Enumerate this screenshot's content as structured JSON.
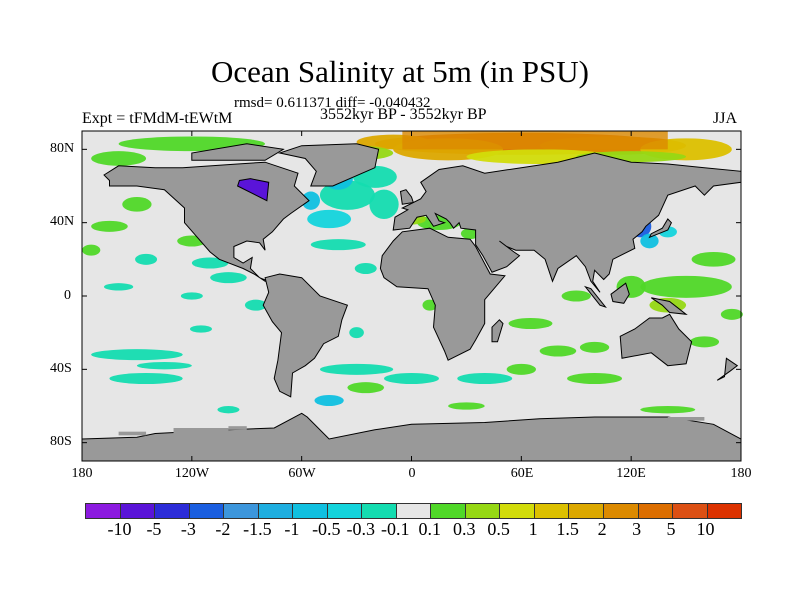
{
  "title": "Ocean Salinity at 5m (in PSU)",
  "stats": "rmsd= 0.611371 diff= -0.040432",
  "experiment": "Expt = tFMdM-tEWtM",
  "period": "3552kyr BP - 3552kyr BP",
  "season": "JJA",
  "chart_data": {
    "type": "heatmap",
    "projection": "cylindrical-equidistant",
    "lon_range": [
      -180,
      180
    ],
    "lat_range": [
      -90,
      90
    ],
    "lat_ticks": [
      {
        "value": 80,
        "label": "80N"
      },
      {
        "value": 40,
        "label": "40N"
      },
      {
        "value": 0,
        "label": "0"
      },
      {
        "value": -40,
        "label": "40S"
      },
      {
        "value": -80,
        "label": "80S"
      }
    ],
    "lon_ticks": [
      {
        "value": -180,
        "label": "180"
      },
      {
        "value": -120,
        "label": "120W"
      },
      {
        "value": -60,
        "label": "60W"
      },
      {
        "value": 0,
        "label": "0"
      },
      {
        "value": 60,
        "label": "60E"
      },
      {
        "value": 120,
        "label": "120E"
      },
      {
        "value": 180,
        "label": "180"
      }
    ],
    "land_color": "#999999",
    "colorbar": {
      "labels": [
        "-10",
        "-5",
        "-3",
        "-2",
        "-1.5",
        "-1",
        "-0.5",
        "-0.3",
        "-0.1",
        "0.1",
        "0.3",
        "0.5",
        "1",
        "1.5",
        "2",
        "3",
        "5",
        "10"
      ],
      "colors": [
        "#8c1ae0",
        "#5a14d8",
        "#2c2cd8",
        "#1a5ee0",
        "#3c96dc",
        "#1eaee0",
        "#10c0e0",
        "#14d4dc",
        "#14dcb0",
        "#e6e6e6",
        "#50d828",
        "#96d814",
        "#d2dc0a",
        "#dcc000",
        "#dca800",
        "#dc8a00",
        "#dc6e00",
        "#dc5014",
        "#dc3200"
      ]
    }
  }
}
